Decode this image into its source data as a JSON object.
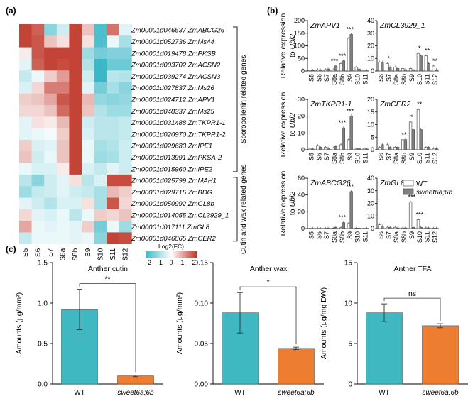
{
  "panel_labels": [
    "(a)",
    "(b)",
    "(c)"
  ],
  "chart_data": [
    {
      "type": "heatmap",
      "id": "a",
      "columns": [
        "S5",
        "S6",
        "S7",
        "S8a",
        "S8b",
        "S9",
        "S10",
        "S11",
        "S12"
      ],
      "rows": [
        {
          "id": "Zm00001d046537",
          "gene": "ZmABCG26",
          "values": [
            1.9,
            1.6,
            -1.2,
            -0.5,
            1.9,
            0.6,
            -1.8,
            1.4,
            -0.3
          ]
        },
        {
          "id": "Zm00001d052736",
          "gene": "ZmMs44",
          "values": [
            1.9,
            1.7,
            0.6,
            0.3,
            1.9,
            0.3,
            -1.8,
            -0.2,
            -0.9
          ]
        },
        {
          "id": "Zm00001d019478",
          "gene": "ZmPKSB",
          "values": [
            0.2,
            1.7,
            1.9,
            1.9,
            1.9,
            -1.0,
            -1.4,
            -1.3,
            -1.3
          ]
        },
        {
          "id": "Zm00001d003702",
          "gene": "ZmACSN2",
          "values": [
            -0.3,
            1.6,
            1.9,
            1.8,
            1.9,
            -0.8,
            -2.0,
            -1.5,
            -1.5
          ]
        },
        {
          "id": "Zm00001d039274",
          "gene": "ZmACSN3",
          "values": [
            -0.6,
            -0.2,
            0.5,
            1.0,
            1.9,
            -0.5,
            -2.0,
            -0.7,
            -0.8
          ]
        },
        {
          "id": "Zm00001d027837",
          "gene": "ZmMs26",
          "values": [
            -0.4,
            0.4,
            1.3,
            1.3,
            1.9,
            -0.3,
            -1.4,
            -0.9,
            -1.2
          ]
        },
        {
          "id": "Zm00001d024712",
          "gene": "ZmAPV1",
          "values": [
            0.5,
            0.6,
            0.9,
            1.7,
            1.9,
            0.7,
            -1.1,
            -1.2,
            -1.1
          ]
        },
        {
          "id": "Zm00001d048337",
          "gene": "ZmMs25",
          "values": [
            0.4,
            0.4,
            0.6,
            1.5,
            1.9,
            0.6,
            -0.8,
            -1.0,
            -1.0
          ]
        },
        {
          "id": "Zm00001d031488",
          "gene": "ZmTKPR1-1",
          "values": [
            -0.3,
            0.3,
            0.2,
            0.7,
            1.9,
            -0.5,
            -0.7,
            -0.7,
            -0.6
          ]
        },
        {
          "id": "Zm00001d020970",
          "gene": "ZmTKPR1-2",
          "values": [
            -0.3,
            -0.2,
            -0.1,
            0.5,
            1.9,
            -0.4,
            -0.7,
            -0.7,
            -0.6
          ]
        },
        {
          "id": "Zm00001d029683",
          "gene": "ZmIPE1",
          "values": [
            0.5,
            -0.4,
            -0.3,
            0.6,
            1.9,
            -0.2,
            -0.9,
            -0.8,
            -0.5
          ]
        },
        {
          "id": "Zm00001d013991",
          "gene": "ZmPKSA-2",
          "values": [
            0.6,
            -0.5,
            -0.2,
            0.6,
            1.9,
            -0.2,
            -1.0,
            -0.9,
            -0.5
          ]
        },
        {
          "id": "Zm00001d015960",
          "gene": "ZmIPE2",
          "values": [
            -0.2,
            -0.4,
            -0.4,
            0.2,
            1.9,
            -0.4,
            -0.6,
            -0.3,
            -0.5
          ]
        },
        {
          "id": "Zm00001d025799",
          "gene": "ZmMAH1",
          "values": [
            -0.7,
            -1.2,
            -0.5,
            -0.3,
            0.3,
            -0.7,
            -0.4,
            1.8,
            1.8
          ]
        },
        {
          "id": "Zm00001d029715",
          "gene": "ZmBDG",
          "values": [
            -1.0,
            -0.6,
            -0.5,
            -0.3,
            -0.5,
            -0.6,
            -0.9,
            0.7,
            0.5
          ]
        },
        {
          "id": "Zm00001d050992",
          "gene": "ZmGL8b",
          "values": [
            -0.3,
            -0.5,
            -0.8,
            -0.4,
            -0.4,
            0.3,
            -0.9,
            1.7,
            0.4
          ]
        },
        {
          "id": "Zm00001d014055",
          "gene": "ZmCL3929_1",
          "values": [
            0.4,
            -0.3,
            -0.4,
            -0.2,
            -0.7,
            -0.2,
            0.5,
            0.4,
            0.6
          ]
        },
        {
          "id": "Zm00001d017111",
          "gene": "ZmGL8",
          "values": [
            0.9,
            -0.2,
            -0.3,
            -0.2,
            -0.3,
            0.5,
            -1.4,
            -0.2,
            -1.0
          ]
        },
        {
          "id": "Zm00001d046865",
          "gene": "ZmCER2",
          "values": [
            -0.6,
            -0.2,
            -0.2,
            -0.2,
            -0.3,
            -0.2,
            -1.2,
            1.9,
            1.8
          ]
        }
      ],
      "groups": [
        "Sporopollenin related genes",
        "Cutin and wax related genes"
      ],
      "colorbar": {
        "title": "Log2(FC)",
        "ticks": [
          "-2",
          "-1",
          "0",
          "1",
          "2"
        ],
        "range": [
          -2,
          2
        ],
        "low_color": "#3bb8c7",
        "mid_color": "#ffffff",
        "high_color": "#c0392b"
      }
    },
    {
      "type": "bar",
      "id": "b",
      "ylabel": "Relative expression to Ubi2",
      "legend": [
        "WT",
        "sweet6a;6b"
      ],
      "series_colors": [
        "#ffffff",
        "#808080"
      ],
      "subplots": [
        {
          "gene": "ZmAPV1",
          "ylim": [
            0,
            200
          ],
          "yticks": [
            "0",
            "50",
            "100",
            "150",
            "200"
          ],
          "categories": [
            "S5",
            "S6",
            "S7",
            "S8a",
            "S8b",
            "S9",
            "S10",
            "S11"
          ],
          "wt": [
            3,
            5,
            5,
            5,
            30,
            130,
            15,
            1
          ],
          "mut": [
            2,
            4,
            8,
            20,
            40,
            145,
            8,
            1
          ],
          "stars": [
            "",
            "",
            "",
            "***",
            "***",
            "***",
            "",
            ""
          ]
        },
        {
          "gene": "ZmCL3929_1",
          "ylim": [
            0,
            40
          ],
          "yticks": [
            "0",
            "10",
            "20",
            "30",
            "40"
          ],
          "categories": [
            "S6",
            "S7",
            "S8a",
            "S8b",
            "S9",
            "S10",
            "S11",
            "S12"
          ],
          "wt": [
            7,
            6,
            3,
            2,
            2,
            14,
            12,
            4
          ],
          "mut": [
            7,
            3,
            2,
            1,
            1,
            12,
            6,
            1
          ],
          "stars": [
            "",
            "*",
            "",
            "",
            "",
            "*",
            "**",
            "**"
          ]
        },
        {
          "gene": "ZmTKPR1-1",
          "ylim": [
            0,
            30
          ],
          "yticks": [
            "0",
            "10",
            "20",
            "30"
          ],
          "categories": [
            "S5",
            "S6",
            "S7",
            "S8a",
            "S8b",
            "S9",
            "S10",
            "S11"
          ],
          "wt": [
            0.5,
            2.5,
            1.5,
            1,
            3,
            6,
            0.5,
            0.5
          ],
          "mut": [
            0.5,
            1.5,
            1,
            2,
            13,
            20,
            1,
            0.5
          ],
          "stars": [
            "",
            "",
            "",
            "",
            "***",
            "***",
            "",
            ""
          ]
        },
        {
          "gene": "ZmCER2",
          "ylim": [
            0,
            20
          ],
          "yticks": [
            "0",
            "5",
            "10",
            "15",
            "20"
          ],
          "categories": [
            "S6",
            "S7",
            "S8a",
            "S8b",
            "S9",
            "S10",
            "S11",
            "S12"
          ],
          "wt": [
            1,
            2,
            1,
            4,
            11,
            16,
            1,
            0.5
          ],
          "mut": [
            2,
            1,
            1,
            4,
            8,
            8,
            1,
            0.5
          ],
          "stars": [
            "",
            "",
            "",
            "**",
            "*",
            "**",
            "",
            ""
          ]
        },
        {
          "gene": "ZmABCG26",
          "ylim": [
            0,
            60
          ],
          "yticks": [
            "0",
            "20",
            "40",
            "60"
          ],
          "categories": [
            "S5",
            "S6",
            "S7",
            "S8a",
            "S8b",
            "S9",
            "S10",
            "S11"
          ],
          "wt": [
            0.3,
            0.3,
            0.3,
            0.5,
            1,
            6,
            0.5,
            0.3
          ],
          "mut": [
            0.3,
            0.3,
            0.5,
            1.5,
            7,
            44,
            0.5,
            0.3
          ],
          "stars": [
            "",
            "",
            "",
            "",
            "***",
            "***",
            "",
            ""
          ]
        },
        {
          "gene": "ZmGL8",
          "ylim": [
            0,
            40
          ],
          "yticks": [
            "0",
            "10",
            "20",
            "30",
            "40"
          ],
          "categories": [
            "S6",
            "S7",
            "S8a",
            "S8b",
            "S9",
            "S10",
            "S11",
            "S12"
          ],
          "wt": [
            3,
            1,
            1,
            0.5,
            21,
            7,
            0.5,
            0.3
          ],
          "mut": [
            2,
            1,
            0.5,
            0.5,
            1,
            1,
            0.5,
            0.3
          ],
          "stars": [
            "",
            "",
            "",
            "",
            "***",
            "***",
            "",
            ""
          ]
        }
      ]
    },
    {
      "type": "bar",
      "id": "c",
      "categories": [
        "WT",
        "sweet6a;6b"
      ],
      "bar_colors": [
        "#3fb8c2",
        "#ed7d31"
      ],
      "subplots": [
        {
          "title": "Anther cutin",
          "ylabel": "Amounts (μg/mm²)",
          "ylim": [
            0,
            1.5
          ],
          "yticks": [
            "0.0",
            "0.5",
            "1.0",
            "1.5"
          ],
          "values": [
            0.92,
            0.1
          ],
          "errors": [
            0.25,
            0.01
          ],
          "sig": "**"
        },
        {
          "title": "Anther wax",
          "ylabel": "Amounts (μg/mm²)",
          "ylim": [
            0,
            0.15
          ],
          "yticks": [
            "0.00",
            "0.05",
            "0.10",
            "0.15"
          ],
          "values": [
            0.088,
            0.044
          ],
          "errors": [
            0.025,
            0.0015
          ],
          "sig": "*"
        },
        {
          "title": "Anther TFA",
          "ylabel": "Amounts (μg/mg DW)",
          "ylim": [
            0,
            15
          ],
          "yticks": [
            "0",
            "5",
            "10",
            "15"
          ],
          "values": [
            8.8,
            7.2
          ],
          "errors": [
            1.1,
            0.25
          ],
          "sig": "ns"
        }
      ]
    }
  ]
}
